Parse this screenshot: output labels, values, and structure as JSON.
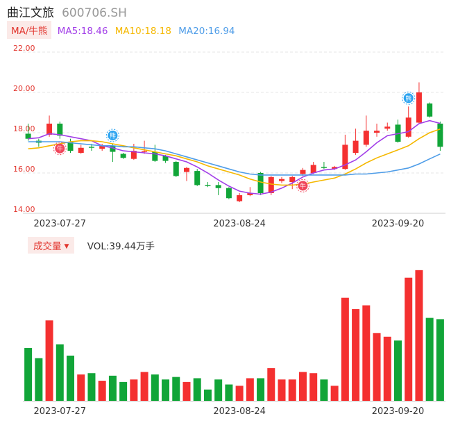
{
  "header": {
    "name": "曲江文旅",
    "code": "600706.SH"
  },
  "ma": {
    "tag": "MA/牛熊",
    "items": [
      {
        "label": "MA5:18.46",
        "color": "#a23ee8"
      },
      {
        "label": "MA10:18.18",
        "color": "#f5b800"
      },
      {
        "label": "MA20:16.94",
        "color": "#4f9de8"
      }
    ]
  },
  "volume_panel": {
    "tag": "成交量",
    "label": "VOL:39.44万手"
  },
  "colors": {
    "up": "#f43030",
    "down": "#11a538",
    "axis": "#e2362f"
  },
  "chart_data": {
    "type": "candlestick",
    "y_ticks": [
      "22.00",
      "20.00",
      "18.00",
      "16.00",
      "14.00"
    ],
    "ylim": [
      14,
      22
    ],
    "x_tick_labels": [
      {
        "index": 3,
        "label": "2023-07-27"
      },
      {
        "index": 20,
        "label": "2023-08-24"
      },
      {
        "index": 35,
        "label": "2023-09-20"
      }
    ],
    "candles": [
      {
        "o": 17.95,
        "c": 17.7,
        "h": 18.45,
        "l": 17.6
      },
      {
        "o": 17.6,
        "c": 17.5,
        "h": 17.7,
        "l": 17.3
      },
      {
        "o": 17.9,
        "c": 18.45,
        "h": 18.85,
        "l": 17.8
      },
      {
        "o": 18.45,
        "c": 17.85,
        "h": 18.55,
        "l": 17.7
      },
      {
        "o": 17.55,
        "c": 17.1,
        "h": 17.7,
        "l": 17.0
      },
      {
        "o": 17.0,
        "c": 17.25,
        "h": 17.4,
        "l": 16.95
      },
      {
        "o": 17.3,
        "c": 17.25,
        "h": 17.45,
        "l": 17.1
      },
      {
        "o": 17.2,
        "c": 17.35,
        "h": 17.45,
        "l": 17.1
      },
      {
        "o": 17.35,
        "c": 17.05,
        "h": 17.45,
        "l": 16.55
      },
      {
        "o": 16.95,
        "c": 16.75,
        "h": 17.0,
        "l": 16.7
      },
      {
        "o": 16.7,
        "c": 17.1,
        "h": 17.45,
        "l": 16.65
      },
      {
        "o": 17.05,
        "c": 17.1,
        "h": 17.6,
        "l": 16.95
      },
      {
        "o": 17.05,
        "c": 16.6,
        "h": 17.4,
        "l": 16.55
      },
      {
        "o": 16.85,
        "c": 16.6,
        "h": 16.9,
        "l": 16.5
      },
      {
        "o": 16.55,
        "c": 15.85,
        "h": 16.6,
        "l": 15.8
      },
      {
        "o": 16.05,
        "c": 16.25,
        "h": 16.3,
        "l": 15.6
      },
      {
        "o": 16.1,
        "c": 15.4,
        "h": 16.2,
        "l": 15.35
      },
      {
        "o": 15.4,
        "c": 15.35,
        "h": 15.55,
        "l": 15.3
      },
      {
        "o": 15.4,
        "c": 15.25,
        "h": 15.55,
        "l": 14.9
      },
      {
        "o": 15.25,
        "c": 14.75,
        "h": 15.3,
        "l": 14.7
      },
      {
        "o": 14.6,
        "c": 14.9,
        "h": 15.0,
        "l": 14.55
      },
      {
        "o": 14.9,
        "c": 15.0,
        "h": 15.3,
        "l": 14.85
      },
      {
        "o": 16.0,
        "c": 15.0,
        "h": 16.05,
        "l": 14.9
      },
      {
        "o": 15.0,
        "c": 15.8,
        "h": 15.85,
        "l": 14.9
      },
      {
        "o": 15.6,
        "c": 15.7,
        "h": 15.8,
        "l": 15.5
      },
      {
        "o": 15.55,
        "c": 15.8,
        "h": 15.85,
        "l": 15.2
      },
      {
        "o": 15.95,
        "c": 16.15,
        "h": 16.25,
        "l": 15.85
      },
      {
        "o": 16.0,
        "c": 16.4,
        "h": 16.55,
        "l": 15.95
      },
      {
        "o": 16.3,
        "c": 16.25,
        "h": 16.55,
        "l": 16.2
      },
      {
        "o": 16.2,
        "c": 16.3,
        "h": 16.35,
        "l": 16.15
      },
      {
        "o": 16.2,
        "c": 17.4,
        "h": 17.9,
        "l": 16.15
      },
      {
        "o": 17.0,
        "c": 17.6,
        "h": 18.2,
        "l": 16.9
      },
      {
        "o": 17.4,
        "c": 18.1,
        "h": 18.85,
        "l": 17.3
      },
      {
        "o": 18.0,
        "c": 18.1,
        "h": 18.45,
        "l": 17.8
      },
      {
        "o": 18.2,
        "c": 18.3,
        "h": 18.5,
        "l": 18.1
      },
      {
        "o": 18.4,
        "c": 17.55,
        "h": 18.65,
        "l": 17.5
      },
      {
        "o": 17.8,
        "c": 18.75,
        "h": 19.3,
        "l": 17.75
      },
      {
        "o": 18.5,
        "c": 20.0,
        "h": 20.5,
        "l": 18.45
      },
      {
        "o": 19.45,
        "c": 18.8,
        "h": 19.5,
        "l": 18.75
      },
      {
        "o": 18.45,
        "c": 17.3,
        "h": 18.55,
        "l": 17.1
      }
    ],
    "ma5": [
      17.7,
      17.75,
      17.95,
      17.9,
      17.8,
      17.7,
      17.6,
      17.35,
      17.25,
      17.1,
      17.05,
      17.0,
      16.95,
      16.85,
      16.7,
      16.55,
      16.3,
      16.0,
      15.65,
      15.35,
      15.1,
      15.0,
      14.95,
      15.05,
      15.25,
      15.5,
      15.8,
      16.0,
      16.15,
      16.2,
      16.4,
      16.65,
      17.05,
      17.5,
      17.85,
      17.95,
      18.05,
      18.45,
      18.6,
      18.46
    ],
    "ma10": [
      17.2,
      17.25,
      17.35,
      17.45,
      17.55,
      17.6,
      17.6,
      17.55,
      17.45,
      17.35,
      17.25,
      17.15,
      17.05,
      16.95,
      16.85,
      16.7,
      16.55,
      16.35,
      16.2,
      16.05,
      15.9,
      15.7,
      15.55,
      15.45,
      15.4,
      15.4,
      15.45,
      15.55,
      15.65,
      15.75,
      15.95,
      16.2,
      16.5,
      16.75,
      16.95,
      17.15,
      17.35,
      17.7,
      18.0,
      18.18
    ],
    "ma20": [
      17.55,
      17.55,
      17.55,
      17.55,
      17.5,
      17.45,
      17.4,
      17.35,
      17.35,
      17.3,
      17.3,
      17.25,
      17.2,
      17.1,
      16.95,
      16.8,
      16.65,
      16.5,
      16.35,
      16.2,
      16.05,
      15.95,
      15.9,
      15.9,
      15.9,
      15.9,
      15.9,
      15.9,
      15.9,
      15.9,
      15.9,
      15.95,
      15.95,
      16.0,
      16.05,
      16.15,
      16.25,
      16.45,
      16.7,
      16.94
    ],
    "volume": [
      42,
      34,
      64,
      45,
      36,
      21,
      22,
      16,
      20,
      15,
      17,
      23,
      21,
      17,
      19,
      15,
      18,
      9,
      17,
      13,
      12,
      18,
      18,
      26,
      17,
      17,
      23,
      22,
      17,
      12,
      82,
      73,
      76,
      54,
      51,
      48,
      98,
      104,
      66,
      65
    ],
    "signals": [
      {
        "index": 3,
        "type": "buy",
        "label": "牛"
      },
      {
        "index": 8,
        "type": "sell",
        "label": "熊"
      },
      {
        "index": 26,
        "type": "buy",
        "label": "牛"
      },
      {
        "index": 36,
        "type": "sell",
        "label": "熊"
      }
    ]
  }
}
